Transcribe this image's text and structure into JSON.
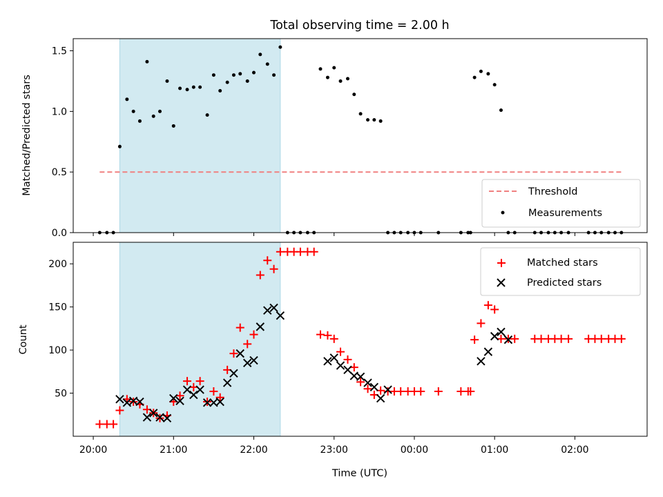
{
  "title": "Total observing time = 2.00 h",
  "colors": {
    "shade": "#add8e6",
    "threshold": "#f08080",
    "measurement": "#000000",
    "matched": "#ff0000",
    "predicted": "#000000"
  },
  "chart_data": [
    {
      "type": "scatter",
      "panel": "top",
      "ylabel": "Matched/Predicted stars",
      "xlabel": "",
      "ylim": [
        0,
        1.6
      ],
      "yticks": [
        0.0,
        0.5,
        1.0,
        1.5
      ],
      "ytick_labels": [
        "0.0",
        "0.5",
        "1.0",
        "1.5"
      ],
      "xlim_hours": [
        19.75,
        26.9
      ],
      "xticks": [
        20,
        21,
        22,
        23,
        24,
        25,
        26
      ],
      "shaded_interval_hours": [
        20.33,
        22.33
      ],
      "legend": {
        "position": "lower right",
        "entries": [
          "Threshold",
          "Measurements"
        ]
      },
      "threshold": {
        "name": "Threshold",
        "value": 0.5,
        "x": [
          20.08,
          26.58
        ]
      },
      "measurements": {
        "name": "Measurements",
        "x": [
          20.08,
          20.17,
          20.25,
          20.33,
          20.42,
          20.5,
          20.58,
          20.67,
          20.75,
          20.83,
          20.92,
          21.0,
          21.08,
          21.17,
          21.25,
          21.33,
          21.42,
          21.5,
          21.58,
          21.67,
          21.75,
          21.83,
          21.92,
          22.0,
          22.08,
          22.17,
          22.25,
          22.33,
          22.42,
          22.5,
          22.58,
          22.67,
          22.75,
          22.83,
          22.92,
          23.0,
          23.08,
          23.17,
          23.25,
          23.33,
          23.42,
          23.5,
          23.58,
          23.67,
          23.75,
          23.83,
          23.92,
          24.0,
          24.08,
          24.3,
          24.58,
          24.67,
          24.7,
          24.75,
          24.83,
          24.92,
          25.0,
          25.08,
          25.17,
          25.25,
          25.5,
          25.58,
          25.67,
          25.75,
          25.83,
          25.92,
          26.17,
          26.25,
          26.33,
          26.42,
          26.5,
          26.58
        ],
        "y": [
          0,
          0,
          0,
          0.71,
          1.1,
          1.0,
          0.92,
          1.41,
          0.96,
          1.0,
          1.25,
          0.88,
          1.19,
          1.18,
          1.2,
          1.2,
          0.97,
          1.3,
          1.17,
          1.24,
          1.3,
          1.31,
          1.25,
          1.32,
          1.47,
          1.39,
          1.3,
          1.53,
          0,
          0,
          0,
          0,
          0,
          1.35,
          1.28,
          1.36,
          1.25,
          1.27,
          1.14,
          0.98,
          0.93,
          0.93,
          0.92,
          0,
          0,
          0,
          0,
          0,
          0,
          0,
          0,
          0,
          0,
          1.28,
          1.33,
          1.31,
          1.22,
          1.01,
          0,
          0,
          0,
          0,
          0,
          0,
          0,
          0,
          0,
          0,
          0,
          0,
          0,
          0
        ]
      }
    },
    {
      "type": "scatter",
      "panel": "bottom",
      "ylabel": "Count",
      "xlabel": "Time (UTC)",
      "ylim": [
        0,
        225
      ],
      "yticks": [
        50,
        100,
        150,
        200
      ],
      "ytick_labels": [
        "50",
        "100",
        "150",
        "200"
      ],
      "xlim_hours": [
        19.75,
        26.9
      ],
      "xticks": [
        20,
        21,
        22,
        23,
        24,
        25,
        26
      ],
      "xtick_labels": [
        "20:00",
        "21:00",
        "22:00",
        "23:00",
        "00:00",
        "01:00",
        "02:00"
      ],
      "shaded_interval_hours": [
        20.33,
        22.33
      ],
      "legend": {
        "position": "upper right",
        "entries": [
          "Matched stars",
          "Predicted stars"
        ]
      },
      "series": [
        {
          "name": "Matched stars",
          "marker": "plus",
          "x": [
            20.08,
            20.17,
            20.25,
            20.33,
            20.42,
            20.5,
            20.58,
            20.67,
            20.75,
            20.83,
            20.92,
            21.0,
            21.08,
            21.17,
            21.25,
            21.33,
            21.42,
            21.5,
            21.58,
            21.67,
            21.75,
            21.83,
            21.92,
            22.0,
            22.08,
            22.17,
            22.25,
            22.33,
            22.42,
            22.5,
            22.58,
            22.67,
            22.75,
            22.83,
            22.92,
            23.0,
            23.08,
            23.17,
            23.25,
            23.33,
            23.42,
            23.5,
            23.58,
            23.67,
            23.75,
            23.83,
            23.92,
            24.0,
            24.08,
            24.3,
            24.58,
            24.67,
            24.7,
            24.75,
            24.83,
            24.92,
            25.0,
            25.08,
            25.17,
            25.25,
            25.5,
            25.58,
            25.67,
            25.75,
            25.83,
            25.92,
            26.17,
            26.25,
            26.33,
            26.42,
            26.5,
            26.58
          ],
          "y": [
            14,
            14,
            14,
            30,
            43,
            40,
            37,
            31,
            27,
            21,
            24,
            40,
            47,
            64,
            57,
            64,
            40,
            52,
            45,
            77,
            96,
            126,
            107,
            118,
            187,
            204,
            194,
            214,
            214,
            214,
            214,
            214,
            214,
            118,
            117,
            113,
            98,
            89,
            80,
            63,
            55,
            48,
            53,
            52,
            52,
            52,
            52,
            52,
            52,
            52,
            52,
            52,
            52,
            112,
            131,
            152,
            147,
            113,
            113,
            113,
            113,
            113,
            113,
            113,
            113,
            113,
            113,
            113,
            113,
            113,
            113,
            113
          ]
        },
        {
          "name": "Predicted stars",
          "marker": "x",
          "x": [
            20.33,
            20.42,
            20.5,
            20.58,
            20.67,
            20.75,
            20.83,
            20.92,
            21.0,
            21.08,
            21.17,
            21.25,
            21.33,
            21.42,
            21.5,
            21.58,
            21.67,
            21.75,
            21.83,
            21.92,
            22.0,
            22.08,
            22.17,
            22.25,
            22.33,
            22.92,
            23.0,
            23.08,
            23.17,
            23.25,
            23.33,
            23.42,
            23.5,
            23.58,
            23.67,
            24.83,
            24.92,
            25.0,
            25.08,
            25.17
          ],
          "y": [
            43,
            39,
            41,
            40,
            22,
            27,
            22,
            21,
            44,
            41,
            54,
            48,
            54,
            39,
            39,
            40,
            62,
            73,
            96,
            85,
            88,
            127,
            146,
            149,
            140,
            87,
            91,
            82,
            77,
            70,
            69,
            62,
            57,
            44,
            54,
            87,
            98,
            116,
            121,
            112
          ]
        }
      ]
    }
  ]
}
